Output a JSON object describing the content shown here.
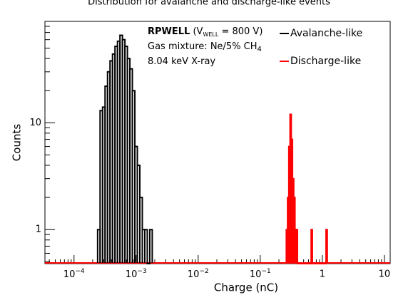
{
  "chart_data": {
    "type": "histogram",
    "title": "Distribution for avalanche and discharge-like events",
    "x_label": "Charge (nC)",
    "y_label": "Counts",
    "log_x": true,
    "log_y": true,
    "xlim": [
      3.4e-05,
      12.4
    ],
    "ylim": [
      0.48,
      89
    ],
    "xticks": [
      {
        "value": 0.0001,
        "label": "10",
        "exponent": "−4"
      },
      {
        "value": 0.001,
        "label": "10",
        "exponent": "−3"
      },
      {
        "value": 0.01,
        "label": "10",
        "exponent": "−2"
      },
      {
        "value": 0.1,
        "label": "10",
        "exponent": "−1"
      },
      1,
      10
    ],
    "yticks": [
      1,
      10
    ],
    "annotations": [
      [
        "RPWELL",
        " (V",
        "WELL",
        " = 800 V)"
      ],
      [
        "Gas mixture: Ne/5% CH",
        "4"
      ],
      [
        "8.04 keV X-ray"
      ]
    ],
    "series": [
      {
        "name": "Avalanche-like",
        "color": "#000000",
        "bins": [
          0.0002399,
          0.000263,
          0.0002884,
          0.0003162,
          0.0003467,
          0.0003802,
          0.0004169,
          0.0004571,
          0.0005012,
          0.0005495,
          0.0006026,
          0.0006607,
          0.0007244,
          0.0007943,
          0.000871,
          0.000955,
          0.001047,
          0.001148,
          0.001259,
          0.00138,
          0.001514,
          0.00166,
          0.00182
        ],
        "values": [
          1,
          13,
          14,
          22,
          30,
          38,
          44,
          52,
          58,
          66,
          60,
          52,
          40,
          32,
          20,
          6,
          4,
          2,
          1,
          1,
          0,
          1
        ]
      },
      {
        "name": "Discharge-like",
        "color": "#ff0000",
        "bins": [
          0.263,
          0.2754,
          0.2884,
          0.302,
          0.3162,
          0.3311,
          0.3467,
          0.3631,
          0.3802,
          0.3981,
          0.6607,
          0.6918,
          1.148,
          1.202
        ],
        "values": [
          1,
          2,
          6,
          12,
          7,
          3,
          2,
          1,
          1,
          0,
          1,
          0,
          1
        ]
      }
    ]
  }
}
